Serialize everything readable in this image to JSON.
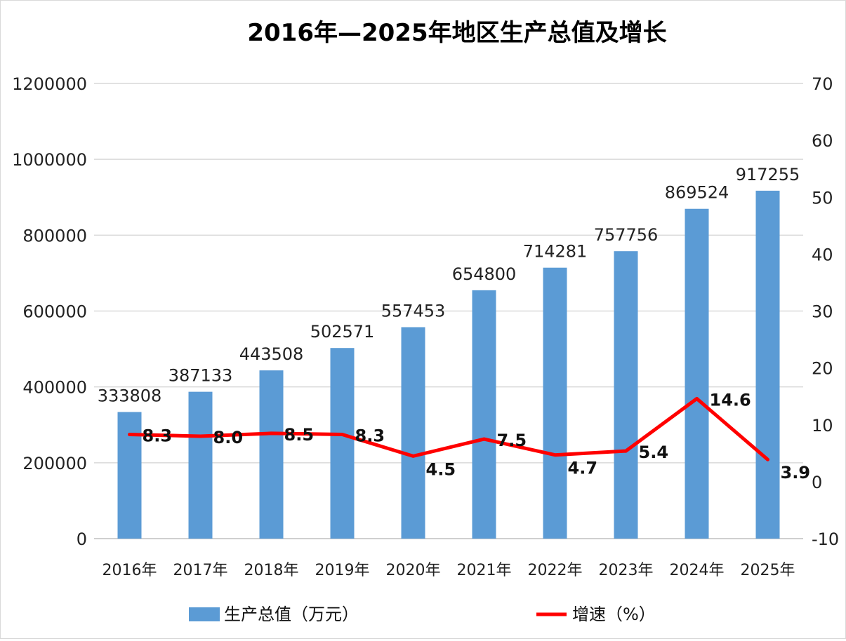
{
  "chart_data": {
    "type": "bar+line",
    "title": "2016年—2025年地区生产总值及增长",
    "categories": [
      "2016年",
      "2017年",
      "2018年",
      "2019年",
      "2020年",
      "2021年",
      "2022年",
      "2023年",
      "2024年",
      "2025年"
    ],
    "series": [
      {
        "name": "生产总值（万元）",
        "type": "bar",
        "axis": "left",
        "color": "#5b9bd5",
        "values": [
          333808,
          387133,
          443508,
          502571,
          557453,
          654800,
          714281,
          757756,
          869524,
          917255
        ],
        "labels": [
          "333808",
          "387133",
          "443508",
          "502571",
          "557453",
          "654800",
          "714281",
          "757756",
          "869524",
          "917255"
        ]
      },
      {
        "name": "增速（%）",
        "type": "line",
        "axis": "right",
        "color": "#ff0000",
        "values": [
          8.3,
          8.0,
          8.5,
          8.3,
          4.5,
          7.5,
          4.7,
          5.4,
          14.6,
          3.9
        ],
        "labels": [
          "8.3",
          "8.0",
          "8.5",
          "8.3",
          "4.5",
          "7.5",
          "4.7",
          "5.4",
          "14.6",
          "3.9"
        ]
      }
    ],
    "left_axis": {
      "ylim": [
        0,
        1200000
      ],
      "ticks": [
        0,
        200000,
        400000,
        600000,
        800000,
        1000000,
        1200000
      ],
      "tick_labels": [
        "0",
        "200000",
        "400000",
        "600000",
        "800000",
        "1000000",
        "1200000"
      ]
    },
    "right_axis": {
      "ylim": [
        -10,
        70
      ],
      "ticks": [
        -10,
        0,
        10,
        20,
        30,
        40,
        50,
        60,
        70
      ],
      "tick_labels": [
        "-10",
        "0",
        "10",
        "20",
        "30",
        "40",
        "50",
        "60",
        "70"
      ]
    },
    "grid": true,
    "legend_position": "bottom"
  }
}
